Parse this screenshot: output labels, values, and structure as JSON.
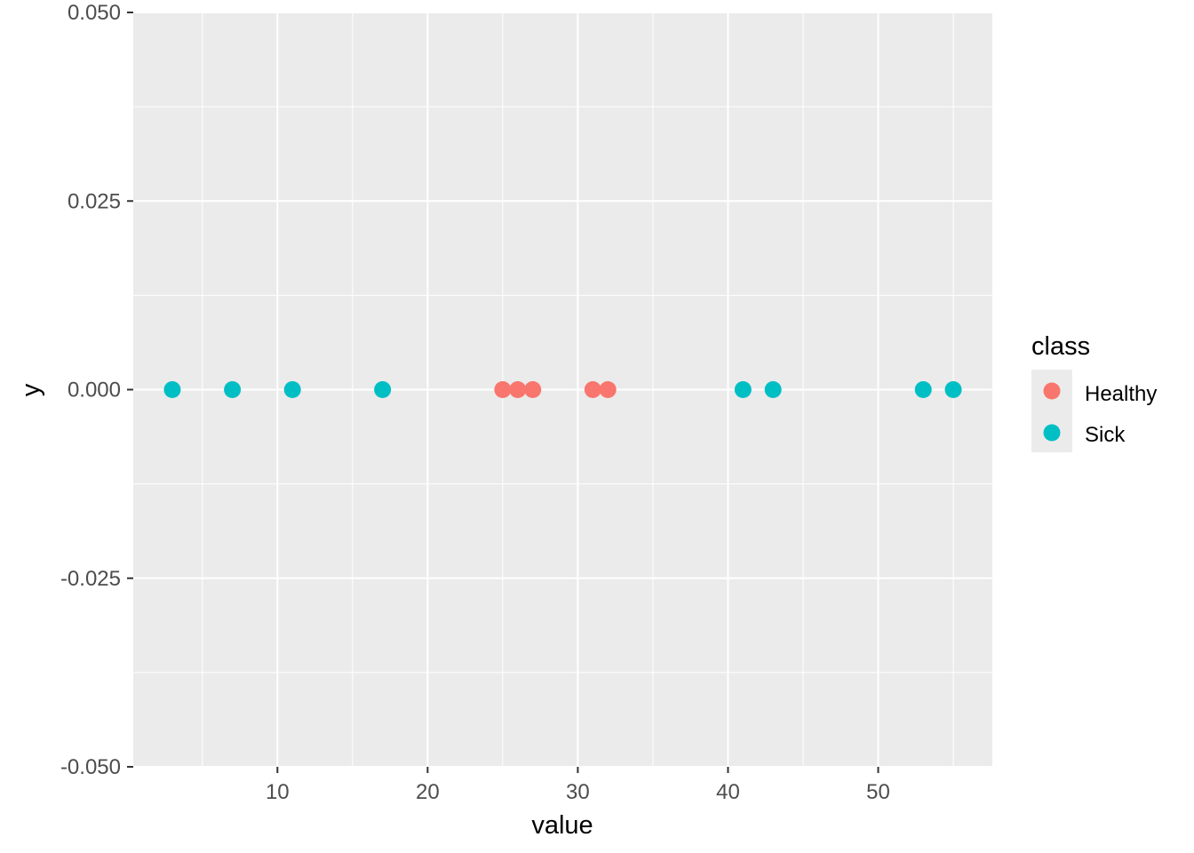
{
  "chart_data": {
    "type": "scatter",
    "xlabel": "value",
    "ylabel": "y",
    "xlim": [
      0.4,
      57.6
    ],
    "ylim": [
      -0.05,
      0.05
    ],
    "x_ticks": [
      10,
      20,
      30,
      40,
      50
    ],
    "x_tick_labels": [
      "10",
      "20",
      "30",
      "40",
      "50"
    ],
    "y_ticks": [
      -0.05,
      -0.025,
      0,
      0.025,
      0.05
    ],
    "y_tick_labels": [
      "-0.050",
      "-0.025",
      "0.000",
      "0.025",
      "0.050"
    ],
    "grid": true,
    "legend": {
      "title": "class",
      "position": "right"
    },
    "series": [
      {
        "name": "Healthy",
        "color": "#F8766D",
        "x": [
          25,
          26,
          27,
          31,
          32
        ],
        "y": [
          0,
          0,
          0,
          0,
          0
        ]
      },
      {
        "name": "Sick",
        "color": "#00BFC4",
        "x": [
          3,
          7,
          11,
          17,
          41,
          43,
          53,
          55
        ],
        "y": [
          0,
          0,
          0,
          0,
          0,
          0,
          0,
          0
        ]
      }
    ]
  }
}
